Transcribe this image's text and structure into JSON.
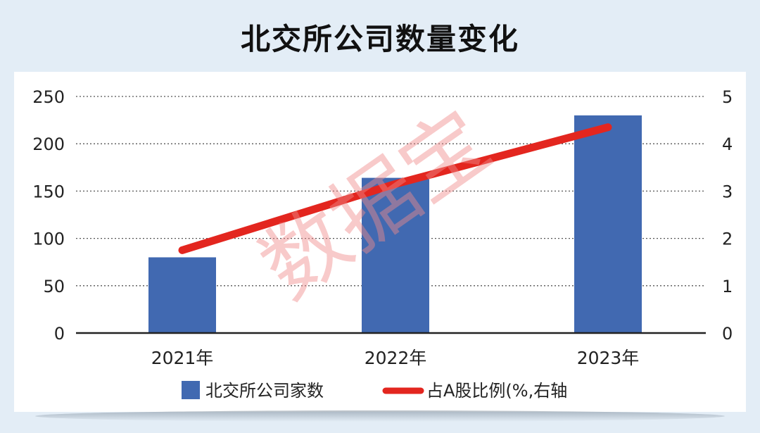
{
  "title": "北交所公司数量变化",
  "watermark": "数据宝",
  "chart_data": {
    "type": "bar+line",
    "categories": [
      "2021年",
      "2022年",
      "2023年"
    ],
    "series": [
      {
        "name": "北交所公司家数",
        "type": "bar",
        "axis": "left",
        "color": "#4169b1",
        "values": [
          80,
          164,
          230
        ]
      },
      {
        "name": "占A股比例(%,右轴",
        "type": "line",
        "axis": "right",
        "color": "#e3261f",
        "values": [
          1.75,
          3.15,
          4.35
        ]
      }
    ],
    "y_left": {
      "min": 0,
      "max": 250,
      "ticks": [
        "0",
        "50",
        "100",
        "150",
        "200",
        "250"
      ]
    },
    "y_right": {
      "min": 0,
      "max": 5,
      "ticks": [
        "0",
        "1",
        "2",
        "3",
        "4",
        "5"
      ]
    },
    "grid": "dotted horizontal",
    "legend_position": "bottom"
  }
}
